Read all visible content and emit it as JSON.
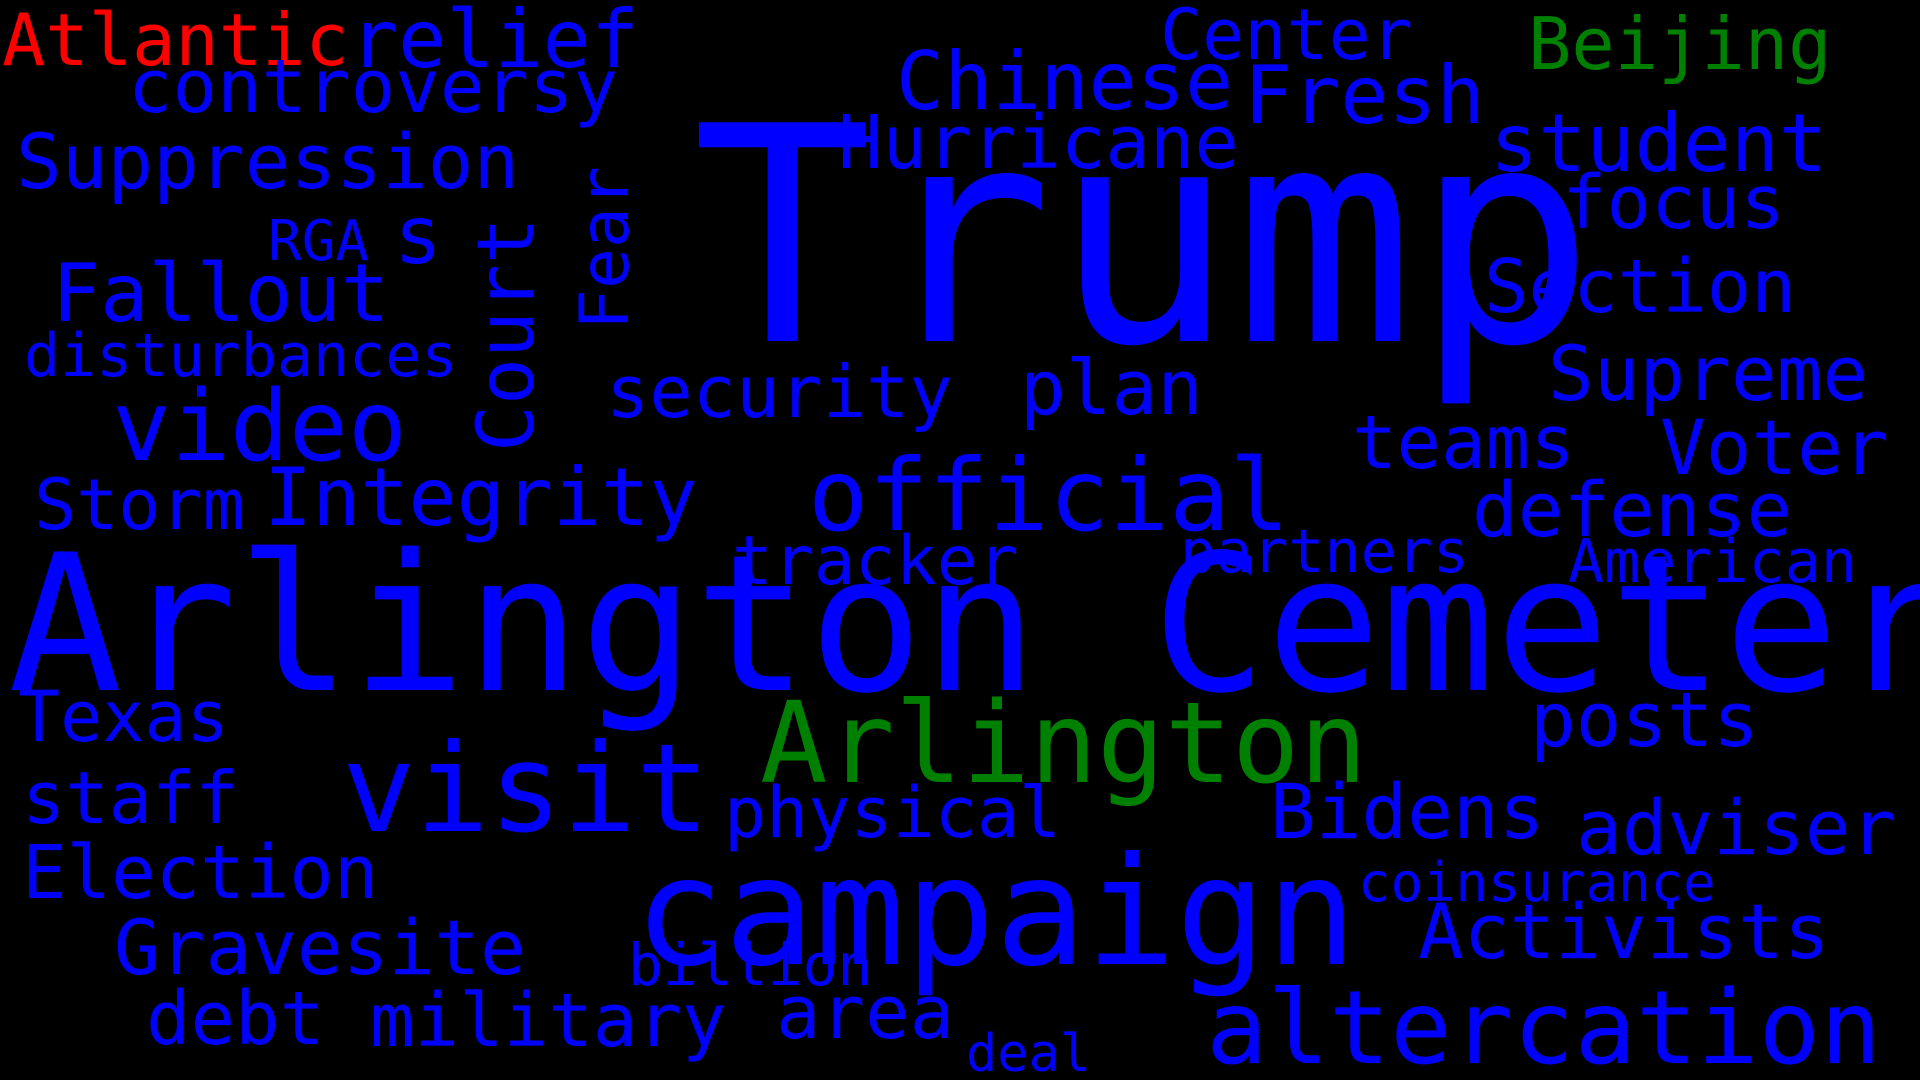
{
  "colors": {
    "background": "#000000",
    "blue": "#0000ff",
    "green": "#008000",
    "red": "#ff0000"
  },
  "words": [
    {
      "key": "atlantic",
      "text": "Atlantic",
      "color": "#ff0000"
    },
    {
      "key": "relief",
      "text": "relief",
      "color": "#0000ff"
    },
    {
      "key": "controversy",
      "text": "controversy",
      "color": "#0000ff"
    },
    {
      "key": "suppression",
      "text": "Suppression",
      "color": "#0000ff"
    },
    {
      "key": "rga",
      "text": "RGA",
      "color": "#0000ff"
    },
    {
      "key": "s",
      "text": "s",
      "color": "#0000ff"
    },
    {
      "key": "fallout",
      "text": "Fallout",
      "color": "#0000ff"
    },
    {
      "key": "disturbances",
      "text": "disturbances",
      "color": "#0000ff"
    },
    {
      "key": "video",
      "text": "video",
      "color": "#0000ff"
    },
    {
      "key": "storm",
      "text": "Storm",
      "color": "#0000ff"
    },
    {
      "key": "integrity",
      "text": "Integrity",
      "color": "#0000ff"
    },
    {
      "key": "court",
      "text": "Court",
      "color": "#0000ff"
    },
    {
      "key": "fear",
      "text": "Fear",
      "color": "#0000ff"
    },
    {
      "key": "trump",
      "text": "Trump",
      "color": "#0000ff"
    },
    {
      "key": "center",
      "text": "Center",
      "color": "#0000ff"
    },
    {
      "key": "chinese",
      "text": "Chinese",
      "color": "#0000ff"
    },
    {
      "key": "fresh",
      "text": "Fresh",
      "color": "#0000ff"
    },
    {
      "key": "beijing",
      "text": "Beijing",
      "color": "#008000"
    },
    {
      "key": "hurricane",
      "text": "Hurricane",
      "color": "#0000ff"
    },
    {
      "key": "student",
      "text": "student",
      "color": "#0000ff"
    },
    {
      "key": "focus",
      "text": "focus",
      "color": "#0000ff"
    },
    {
      "key": "section",
      "text": "Section",
      "color": "#0000ff"
    },
    {
      "key": "supreme",
      "text": "Supreme",
      "color": "#0000ff"
    },
    {
      "key": "security",
      "text": "security",
      "color": "#0000ff"
    },
    {
      "key": "plan",
      "text": "plan",
      "color": "#0000ff"
    },
    {
      "key": "teams",
      "text": "teams",
      "color": "#0000ff"
    },
    {
      "key": "voter",
      "text": "Voter",
      "color": "#0000ff"
    },
    {
      "key": "official",
      "text": "official",
      "color": "#0000ff"
    },
    {
      "key": "defense",
      "text": "defense",
      "color": "#0000ff"
    },
    {
      "key": "tracker",
      "text": "tracker",
      "color": "#0000ff"
    },
    {
      "key": "partners",
      "text": "partners",
      "color": "#0000ff"
    },
    {
      "key": "american",
      "text": "American",
      "color": "#0000ff"
    },
    {
      "key": "arlington-cemetery",
      "text": "Arlington Cemetery",
      "color": "#0000ff"
    },
    {
      "key": "texas",
      "text": "Texas",
      "color": "#0000ff"
    },
    {
      "key": "visit",
      "text": "visit",
      "color": "#0000ff"
    },
    {
      "key": "arlington",
      "text": "Arlington",
      "color": "#008000"
    },
    {
      "key": "posts",
      "text": "posts",
      "color": "#0000ff"
    },
    {
      "key": "staff",
      "text": "staff",
      "color": "#0000ff"
    },
    {
      "key": "physical",
      "text": "physical",
      "color": "#0000ff"
    },
    {
      "key": "bidens",
      "text": "Bidens",
      "color": "#0000ff"
    },
    {
      "key": "adviser",
      "text": "adviser",
      "color": "#0000ff"
    },
    {
      "key": "election",
      "text": "Election",
      "color": "#0000ff"
    },
    {
      "key": "campaign",
      "text": "campaign",
      "color": "#0000ff"
    },
    {
      "key": "coinsurance",
      "text": "coinsurance",
      "color": "#0000ff"
    },
    {
      "key": "activists",
      "text": "Activists",
      "color": "#0000ff"
    },
    {
      "key": "gravesite",
      "text": "Gravesite",
      "color": "#0000ff"
    },
    {
      "key": "billion",
      "text": "billion",
      "color": "#0000ff"
    },
    {
      "key": "debt",
      "text": "debt",
      "color": "#0000ff"
    },
    {
      "key": "military",
      "text": "military",
      "color": "#0000ff"
    },
    {
      "key": "area",
      "text": "area",
      "color": "#0000ff"
    },
    {
      "key": "deal",
      "text": "deal",
      "color": "#0000ff"
    },
    {
      "key": "altercation",
      "text": "altercation",
      "color": "#0000ff"
    }
  ]
}
